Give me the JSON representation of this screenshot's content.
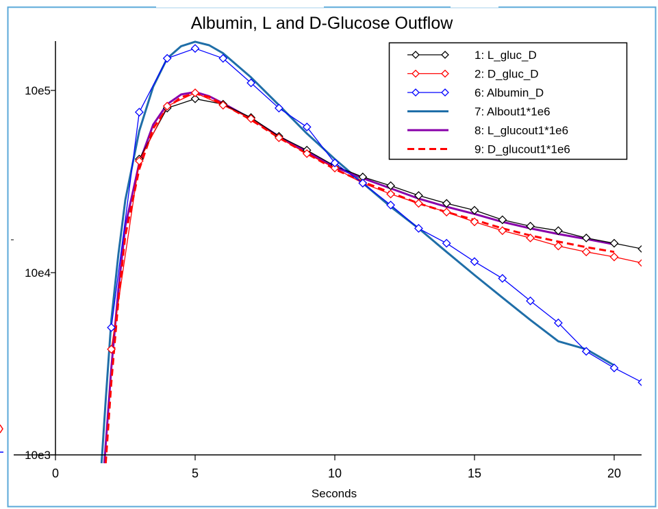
{
  "window": {
    "frame_color": "#5aa8d8"
  },
  "chart_data": {
    "type": "line",
    "title": "Albumin, L and D-Glucose Outflow",
    "xlabel": "Seconds",
    "ylabel": "",
    "xlim": [
      0,
      21
    ],
    "ylim": [
      1000,
      200000
    ],
    "yscale": "log",
    "x_ticks": [
      0,
      5,
      10,
      15,
      20
    ],
    "x_tick_labels": [
      "0",
      "5",
      "10",
      "15",
      "20"
    ],
    "y_ticks": [
      1000,
      10000,
      100000
    ],
    "y_tick_labels": [
      "10e3",
      "10e4",
      "10e5"
    ],
    "grid": false,
    "legend_position": "top-right",
    "series": [
      {
        "name": "1: L_gluc_D",
        "color": "#000000",
        "marker": "diamond",
        "line_style": "solid",
        "x": [
          3,
          4,
          5,
          6,
          7,
          8,
          9,
          10,
          11,
          12,
          13,
          14,
          15,
          16,
          17,
          18,
          19,
          20,
          21
        ],
        "y": [
          42000,
          80000,
          90000,
          84000,
          71000,
          56000,
          47000,
          38500,
          33500,
          30000,
          26500,
          24000,
          22000,
          19500,
          18000,
          17000,
          15500,
          14500,
          13500
        ]
      },
      {
        "name": "2: D_gluc_D",
        "color": "#ff0000",
        "marker": "diamond",
        "line_style": "solid",
        "x": [
          2,
          3,
          4,
          5,
          6,
          7,
          8,
          9,
          10,
          11,
          12,
          13,
          14,
          15,
          16,
          17,
          18,
          19,
          20,
          21
        ],
        "y": [
          3800,
          41000,
          82000,
          97000,
          83000,
          70000,
          55000,
          45000,
          37500,
          31000,
          27000,
          24000,
          21500,
          19000,
          17000,
          15500,
          14000,
          13000,
          12200,
          11300
        ]
      },
      {
        "name": "6: Albumin_D",
        "color": "#0000ff",
        "marker": "diamond",
        "line_style": "solid",
        "x": [
          2,
          3,
          4,
          5,
          6,
          7,
          8,
          9,
          10,
          11,
          12,
          13,
          14,
          15,
          16,
          17,
          18,
          19,
          20,
          21
        ],
        "y": [
          5000,
          76000,
          150000,
          170000,
          150000,
          110000,
          80000,
          63000,
          40000,
          31000,
          23500,
          17500,
          14500,
          11500,
          9300,
          7000,
          5300,
          3700,
          3000,
          2500
        ]
      },
      {
        "name": "7: Albout1*1e6",
        "color": "#1f6ea8",
        "marker": "none",
        "line_style": "solid",
        "x": [
          1.65,
          1.8,
          2,
          2.25,
          2.5,
          3,
          3.5,
          4,
          4.5,
          5,
          5.5,
          6,
          7,
          8,
          9,
          10,
          11,
          12,
          13,
          14,
          15,
          16,
          17,
          18,
          19,
          20
        ],
        "y": [
          900,
          2000,
          5500,
          12500,
          25000,
          60000,
          105000,
          150000,
          175000,
          185000,
          177000,
          160000,
          118000,
          83000,
          58000,
          42000,
          31000,
          23000,
          17500,
          13000,
          9700,
          7300,
          5500,
          4200,
          3800,
          3100
        ]
      },
      {
        "name": "8: L_glucout1*1e6",
        "color": "#8800aa",
        "marker": "none",
        "line_style": "solid",
        "x": [
          1.75,
          2,
          2.25,
          2.5,
          3,
          3.5,
          4,
          4.5,
          5,
          5.5,
          6,
          7,
          8,
          9,
          10,
          11,
          12,
          13,
          14,
          15,
          16,
          17,
          18,
          19,
          20
        ],
        "y": [
          900,
          3000,
          8000,
          18000,
          40000,
          65000,
          84000,
          95000,
          98000,
          93000,
          85000,
          70000,
          56000,
          46000,
          38000,
          33000,
          29000,
          25500,
          23000,
          21000,
          19000,
          17500,
          16300,
          15300,
          14300
        ]
      },
      {
        "name": "9: D_glucout1*1e6",
        "color": "#ff0000",
        "marker": "none",
        "line_style": "dashed",
        "x": [
          1.8,
          2,
          2.25,
          2.5,
          3,
          3.5,
          4,
          4.5,
          5,
          5.5,
          6,
          7,
          8,
          9,
          10,
          11,
          12,
          13,
          14,
          15,
          16,
          17,
          18,
          19,
          20
        ],
        "y": [
          900,
          2500,
          7000,
          16000,
          37000,
          62000,
          80000,
          92000,
          96000,
          92000,
          84000,
          69000,
          55000,
          45000,
          37000,
          31500,
          27500,
          24000,
          21500,
          19500,
          17500,
          16000,
          14800,
          13800,
          13000
        ]
      }
    ]
  }
}
